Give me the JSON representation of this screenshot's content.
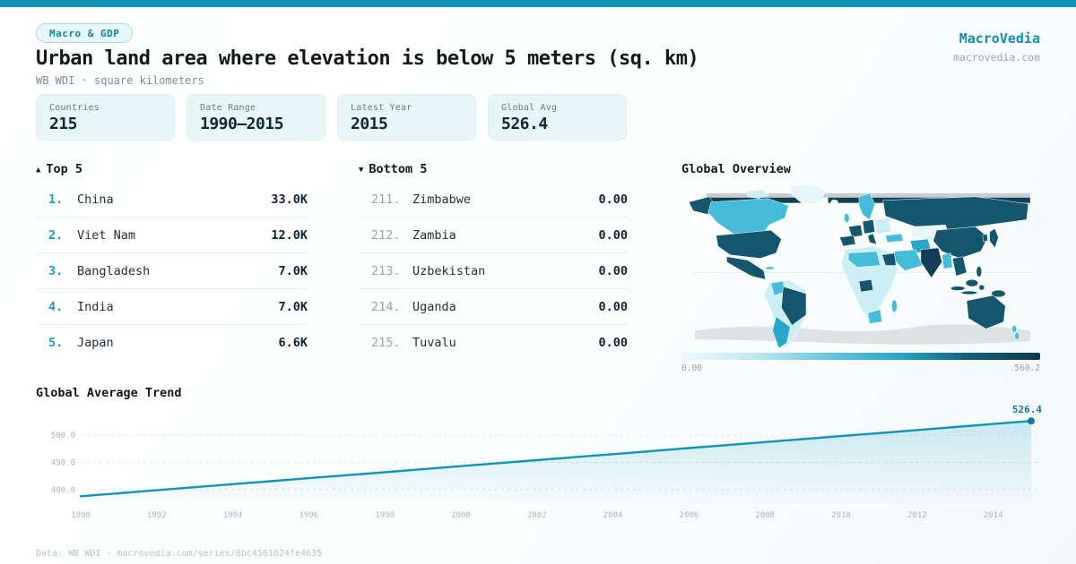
{
  "theme": {
    "accent": "#0e93b4",
    "accent_dark": "#0d7f9e",
    "ink": "#15191c",
    "muted": "#7e8b92",
    "map_palette": {
      "very_light": "#e8f5f9",
      "light": "#cdeef5",
      "cyan": "#45bcd9",
      "mid": "#2aa7c8",
      "dark": "#15566f",
      "deep": "#113e55",
      "band": "#123f54",
      "gray_land": "#dde2e5",
      "gray_band": "#c7cdd1"
    },
    "scale_gradient": [
      "#eef9fc",
      "#bfe9f2",
      "#6cc8de",
      "#2aa7c8",
      "#15607c",
      "#0e3a4d"
    ]
  },
  "header": {
    "badge": "Macro & GDP",
    "title": "Urban land area where elevation is below 5 meters (sq. km)",
    "subtitle": "WB WDI · square kilometers",
    "brand": "MacroVedia",
    "brand_url": "macrovedia.com"
  },
  "stats": [
    {
      "label": "Countries",
      "value": "215"
    },
    {
      "label": "Date Range",
      "value": "1990—2015"
    },
    {
      "label": "Latest Year",
      "value": "2015"
    },
    {
      "label": "Global Avg",
      "value": "526.4"
    }
  ],
  "top5": {
    "arrow": "▲",
    "title": "Top 5",
    "rows": [
      {
        "rank": "1.",
        "name": "China",
        "value": "33.0K"
      },
      {
        "rank": "2.",
        "name": "Viet Nam",
        "value": "12.0K"
      },
      {
        "rank": "3.",
        "name": "Bangladesh",
        "value": "7.0K"
      },
      {
        "rank": "4.",
        "name": "India",
        "value": "7.0K"
      },
      {
        "rank": "5.",
        "name": "Japan",
        "value": "6.6K"
      }
    ]
  },
  "bottom5": {
    "arrow": "▼",
    "title": "Bottom 5",
    "rows": [
      {
        "rank": "211.",
        "name": "Zimbabwe",
        "value": "0.00"
      },
      {
        "rank": "212.",
        "name": "Zambia",
        "value": "0.00"
      },
      {
        "rank": "213.",
        "name": "Uzbekistan",
        "value": "0.00"
      },
      {
        "rank": "214.",
        "name": "Uganda",
        "value": "0.00"
      },
      {
        "rank": "215.",
        "name": "Tuvalu",
        "value": "0.00"
      }
    ]
  },
  "map": {
    "title": "Global Overview",
    "scale_min_label": "0.00",
    "scale_max_label": "560.2"
  },
  "trend": {
    "title": "Global Average Trend"
  },
  "chart_data": [
    {
      "type": "area",
      "title": "Global Average Trend",
      "x": [
        1990,
        1991,
        1992,
        1993,
        1994,
        1995,
        1996,
        1997,
        1998,
        1999,
        2000,
        2001,
        2002,
        2003,
        2004,
        2005,
        2006,
        2007,
        2008,
        2009,
        2010,
        2011,
        2012,
        2013,
        2014,
        2015
      ],
      "values": [
        387.7,
        393.2,
        398.8,
        404.3,
        409.9,
        415.4,
        421.0,
        426.5,
        432.0,
        437.6,
        443.1,
        448.7,
        454.2,
        459.8,
        465.3,
        470.9,
        476.4,
        481.9,
        487.5,
        493.0,
        498.6,
        504.1,
        509.7,
        515.2,
        520.8,
        526.4
      ],
      "xticks": [
        1990,
        1992,
        1994,
        1996,
        1998,
        2000,
        2002,
        2004,
        2006,
        2008,
        2010,
        2012,
        2014
      ],
      "yticks": [
        "400.0",
        "450.0",
        "500.0"
      ],
      "ytick_values": [
        400,
        450,
        500
      ],
      "ylim": [
        375,
        540
      ],
      "end_label": "526.4",
      "line_color": "#1195b6",
      "grid": "horizontal-dashed",
      "legend": "none"
    },
    {
      "type": "heatmap",
      "subtype": "world-choropleth",
      "title": "Global Overview",
      "scale_min": 0.0,
      "scale_max": 560.2,
      "scale_labels": [
        "0.00",
        "560.2"
      ]
    },
    {
      "type": "table",
      "title": "Top 5",
      "rows": [
        [
          "1.",
          "China",
          "33.0K"
        ],
        [
          "2.",
          "Viet Nam",
          "12.0K"
        ],
        [
          "3.",
          "Bangladesh",
          "7.0K"
        ],
        [
          "4.",
          "India",
          "7.0K"
        ],
        [
          "5.",
          "Japan",
          "6.6K"
        ]
      ]
    },
    {
      "type": "table",
      "title": "Bottom 5",
      "rows": [
        [
          "211.",
          "Zimbabwe",
          "0.00"
        ],
        [
          "212.",
          "Zambia",
          "0.00"
        ],
        [
          "213.",
          "Uzbekistan",
          "0.00"
        ],
        [
          "214.",
          "Uganda",
          "0.00"
        ],
        [
          "215.",
          "Tuvalu",
          "0.00"
        ]
      ]
    }
  ],
  "footer": {
    "text": "Data: WB WDI · macrovedia.com/series/8bc4561024fe4635"
  }
}
